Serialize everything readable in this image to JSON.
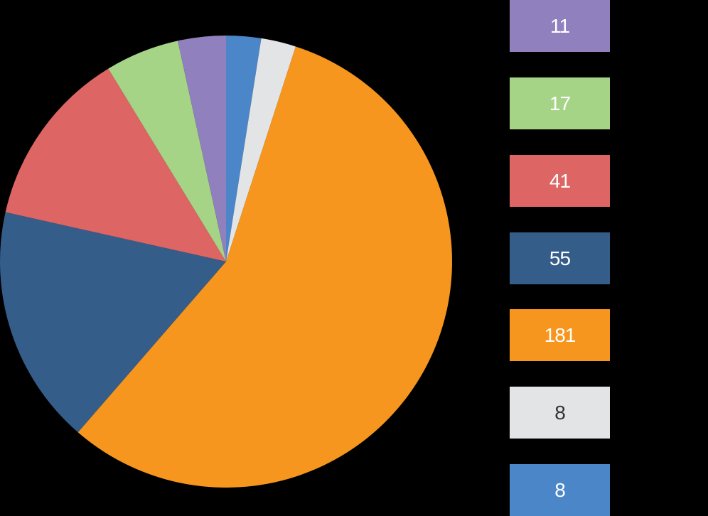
{
  "chart_data": {
    "type": "pie",
    "start_angle_deg": 0,
    "direction": "clockwise",
    "slices": [
      {
        "value": 8,
        "label": "8",
        "color": "#4a86c8",
        "text_color": "#ffffff"
      },
      {
        "value": 8,
        "label": "8",
        "color": "#e3e4e6",
        "text_color": "#333333"
      },
      {
        "value": 181,
        "label": "181",
        "color": "#f7961e",
        "text_color": "#ffffff"
      },
      {
        "value": 55,
        "label": "55",
        "color": "#355d8a",
        "text_color": "#ffffff"
      },
      {
        "value": 41,
        "label": "41",
        "color": "#dd6664",
        "text_color": "#ffffff"
      },
      {
        "value": 17,
        "label": "17",
        "color": "#a6d486",
        "text_color": "#ffffff"
      },
      {
        "value": 11,
        "label": "11",
        "color": "#9080be",
        "text_color": "#ffffff"
      }
    ],
    "legend": {
      "position": "right",
      "order": [
        "11",
        "17",
        "41",
        "55",
        "181",
        "8",
        "8"
      ]
    }
  }
}
